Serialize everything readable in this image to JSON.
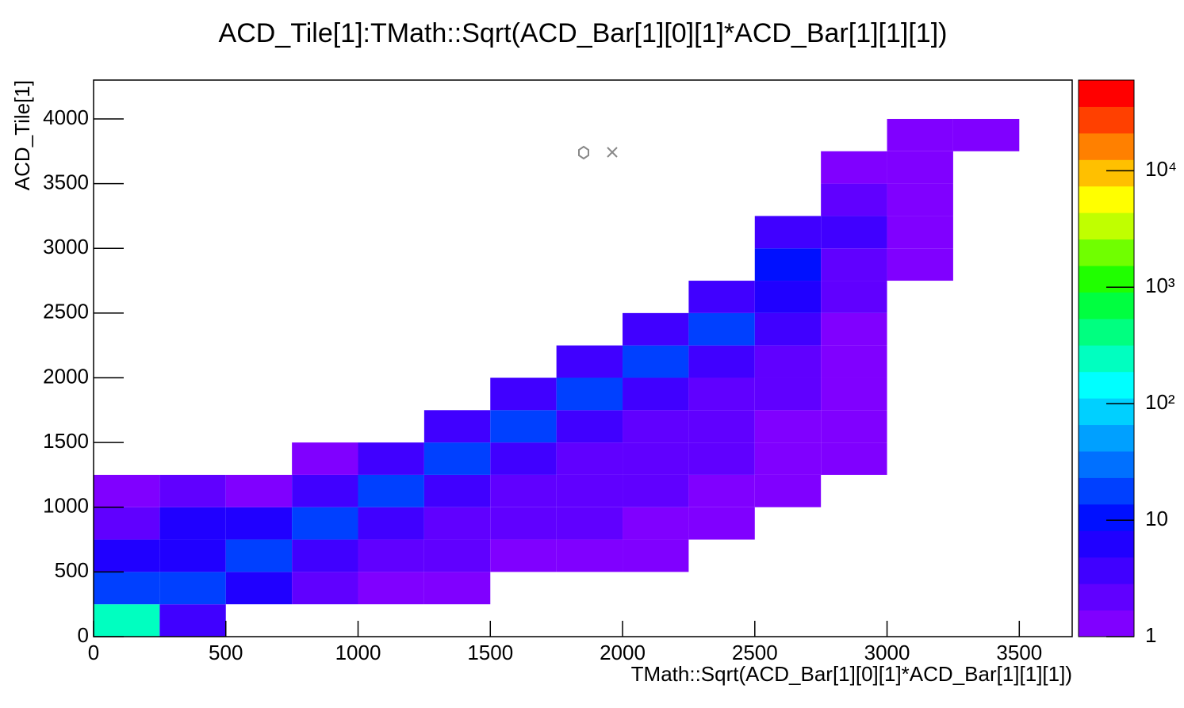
{
  "chart_data": {
    "type": "hist2d",
    "title": "ACD_Tile[1]:TMath::Sqrt(ACD_Bar[1][0][1]*ACD_Bar[1][1][1])",
    "x_label": "TMath::Sqrt(ACD_Bar[1][0][1]*ACD_Bar[1][1][1])",
    "y_label": "ACD_Tile[1]",
    "xlim": [
      0,
      3700
    ],
    "ylim": [
      0,
      4300
    ],
    "xticks": [
      0,
      500,
      1000,
      1500,
      2000,
      2500,
      3000,
      3500
    ],
    "yticks": [
      0,
      500,
      1000,
      1500,
      2000,
      2500,
      3000,
      3500,
      4000
    ],
    "xbins": [
      0,
      250,
      500,
      750,
      1000,
      1250,
      1500,
      1750,
      2000,
      2250,
      2500,
      2750,
      3000,
      3250,
      3500
    ],
    "ybins": [
      0,
      250,
      500,
      750,
      1000,
      1250,
      1500,
      1750,
      2000,
      2250,
      2500,
      2750,
      3000,
      3250,
      3500,
      3750,
      4000
    ],
    "z": [
      [
        300,
        3,
        0,
        0,
        0,
        0,
        0,
        0,
        0,
        0,
        0,
        0,
        0,
        0
      ],
      [
        20,
        15,
        5,
        2,
        1,
        1,
        0,
        0,
        0,
        0,
        0,
        0,
        0,
        0
      ],
      [
        5,
        8,
        15,
        3,
        2,
        2,
        1,
        1,
        1,
        0,
        0,
        0,
        0,
        0
      ],
      [
        2,
        5,
        5,
        15,
        3,
        2,
        2,
        2,
        1,
        1,
        0,
        0,
        0,
        0
      ],
      [
        1,
        2,
        1,
        4,
        15,
        3,
        2,
        2,
        2,
        1,
        1,
        0,
        0,
        0
      ],
      [
        0,
        0,
        0,
        1,
        3,
        15,
        3,
        2,
        2,
        2,
        1,
        1,
        0,
        0
      ],
      [
        0,
        0,
        0,
        0,
        0,
        3,
        15,
        4,
        2,
        2,
        1,
        1,
        0,
        0
      ],
      [
        0,
        0,
        0,
        0,
        0,
        0,
        3,
        15,
        4,
        2,
        2,
        1,
        0,
        0
      ],
      [
        0,
        0,
        0,
        0,
        0,
        0,
        0,
        3,
        15,
        3,
        2,
        1,
        0,
        0
      ],
      [
        0,
        0,
        0,
        0,
        0,
        0,
        0,
        0,
        3,
        15,
        3,
        1,
        0,
        0
      ],
      [
        0,
        0,
        0,
        0,
        0,
        0,
        0,
        0,
        0,
        4,
        8,
        2,
        0,
        0
      ],
      [
        0,
        0,
        0,
        0,
        0,
        0,
        0,
        0,
        0,
        0,
        10,
        2,
        1,
        0
      ],
      [
        0,
        0,
        0,
        0,
        0,
        0,
        0,
        0,
        0,
        0,
        3,
        3,
        1,
        0
      ],
      [
        0,
        0,
        0,
        0,
        0,
        0,
        0,
        0,
        0,
        0,
        0,
        2,
        1,
        0
      ],
      [
        0,
        0,
        0,
        0,
        0,
        0,
        0,
        0,
        0,
        0,
        0,
        1,
        1,
        0
      ],
      [
        0,
        0,
        0,
        0,
        0,
        0,
        0,
        0,
        0,
        0,
        0,
        0,
        1,
        1
      ]
    ],
    "zlim": [
      1,
      60000
    ],
    "zlog": true,
    "zticks": [
      1,
      10,
      {
        "value": 100,
        "label": "10²"
      },
      {
        "value": 1000,
        "label": "10³"
      },
      {
        "value": 10000,
        "label": "10⁴"
      }
    ],
    "palette": [
      "#8000ff",
      "#6000ff",
      "#4000ff",
      "#2000ff",
      "#0010ff",
      "#0040ff",
      "#0070ff",
      "#00a0ff",
      "#00d0ff",
      "#00ffff",
      "#00ffc0",
      "#00ff80",
      "#00ff40",
      "#20ff00",
      "#70ff00",
      "#c0ff00",
      "#ffff00",
      "#ffc000",
      "#ff8000",
      "#ff4000",
      "#ff0000"
    ]
  }
}
